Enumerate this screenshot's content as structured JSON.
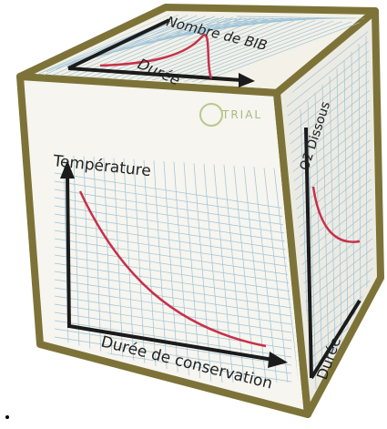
{
  "top_face": {
    "y_label": "Nombre de BIB",
    "x_label": "Durée"
  },
  "logo": "TRIAL",
  "front_face": {
    "y_label": "Température",
    "x_label": "Durée de conservation"
  },
  "side_face": {
    "y_label": "O2 Dissous",
    "x_label": "Durée"
  }
}
